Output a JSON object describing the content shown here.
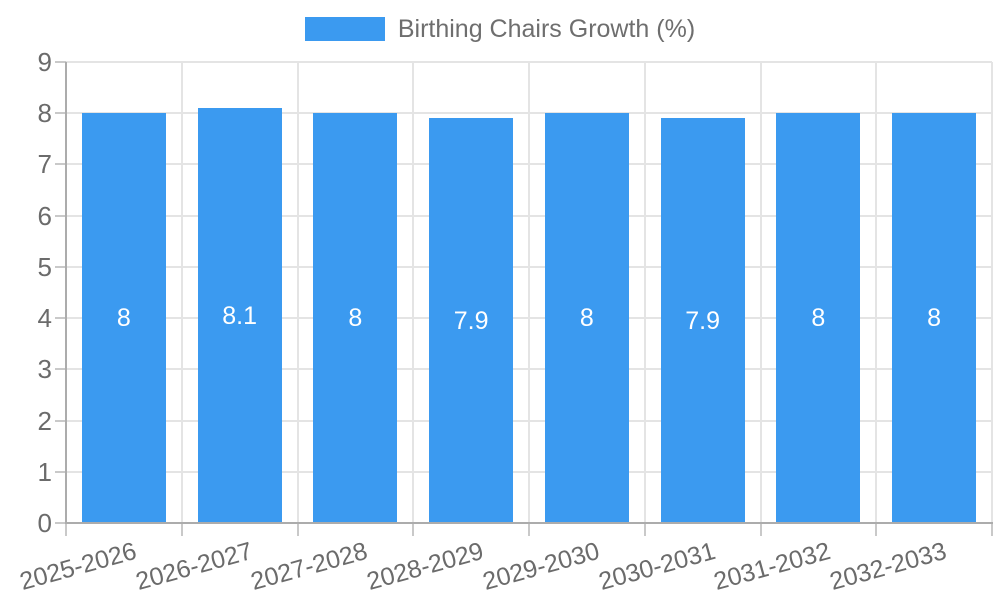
{
  "legend": {
    "label": "Birthing Chairs Growth (%)"
  },
  "chart_data": {
    "type": "bar",
    "title": "Birthing Chairs Growth (%)",
    "categories": [
      "2025-2026",
      "2026-2027",
      "2027-2028",
      "2028-2029",
      "2029-2030",
      "2030-2031",
      "2031-2032",
      "2032-2033"
    ],
    "values": [
      8,
      8.1,
      8,
      7.9,
      8,
      7.9,
      8,
      8
    ],
    "value_labels": [
      "8",
      "8.1",
      "8",
      "7.9",
      "8",
      "7.9",
      "8",
      "8"
    ],
    "ytick_labels": [
      "0",
      "1",
      "2",
      "3",
      "4",
      "5",
      "6",
      "7",
      "8",
      "9"
    ],
    "ylim": [
      0,
      9
    ],
    "ytick_step": 1,
    "xlabel": "",
    "ylabel": "",
    "grid": true,
    "legend_position": "top",
    "x_label_rotation_deg": -15.5,
    "colors": {
      "bar": "#3B9AF0",
      "grid": "#E4E4E4",
      "axis": "#ACACAC",
      "tick": "#C9C9C9",
      "tick_label": "#6B6B6B",
      "legend_label": "#6E6E6E",
      "value_label": "#FFFFFF",
      "background": "#FFFFFF"
    }
  }
}
